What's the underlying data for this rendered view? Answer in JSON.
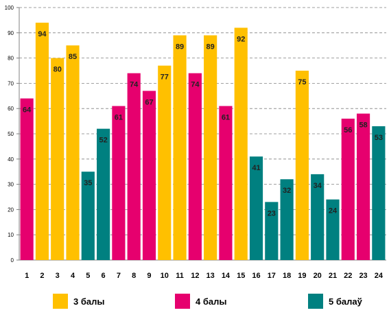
{
  "chart_data": {
    "type": "bar",
    "categories": [
      "1",
      "2",
      "3",
      "4",
      "5",
      "6",
      "7",
      "8",
      "9",
      "10",
      "11",
      "12",
      "13",
      "14",
      "15",
      "16",
      "17",
      "18",
      "19",
      "20",
      "21",
      "22",
      "23",
      "24"
    ],
    "values": [
      64,
      94,
      80,
      85,
      35,
      52,
      61,
      74,
      67,
      77,
      89,
      74,
      89,
      61,
      92,
      41,
      23,
      32,
      75,
      34,
      24,
      56,
      58,
      53
    ],
    "groups": [
      "4",
      "3",
      "3",
      "3",
      "5",
      "5",
      "4",
      "4",
      "4",
      "3",
      "3",
      "4",
      "3",
      "4",
      "3",
      "5",
      "5",
      "5",
      "3",
      "5",
      "5",
      "4",
      "4",
      "5"
    ],
    "yticks": [
      0,
      10,
      20,
      30,
      40,
      50,
      60,
      70,
      80,
      90,
      100
    ],
    "ylim": [
      0,
      100
    ],
    "grid": true,
    "legend_placement": "bottom",
    "legend": [
      {
        "key": "3",
        "label": "3 балы",
        "color": "#FFC000"
      },
      {
        "key": "4",
        "label": "4 балы",
        "color": "#E6006E"
      },
      {
        "key": "5",
        "label": "5 балаў",
        "color": "#008080"
      }
    ]
  }
}
